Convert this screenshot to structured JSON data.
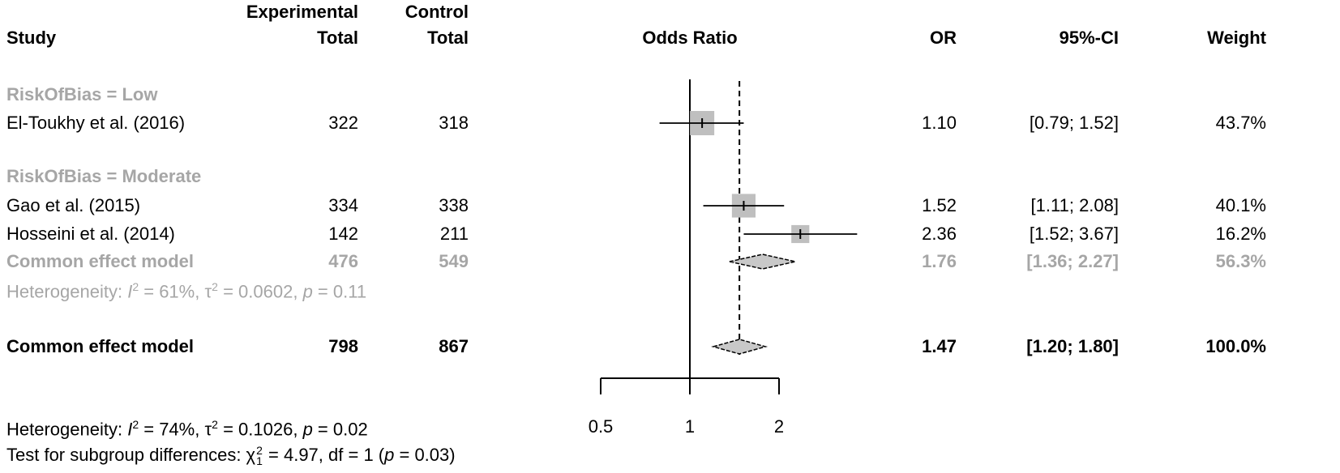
{
  "chart_data": {
    "type": "forest",
    "title": "Odds Ratio",
    "headers": {
      "study": "Study",
      "experimental": [
        "Experimental",
        "Total"
      ],
      "control": [
        "Control",
        "Total"
      ],
      "plot": "Odds Ratio",
      "or": "OR",
      "ci": "95%-CI",
      "weight": "Weight"
    },
    "x_scale": "log",
    "xlim": [
      0.5,
      2
    ],
    "x_ticks": [
      0.5,
      1,
      2
    ],
    "x_tick_labels": [
      "0.5",
      "1",
      "2"
    ],
    "null_line": 1,
    "pooled_line": 1.47,
    "subgroups": [
      {
        "label": "RiskOfBias = Low",
        "studies": [
          {
            "name": "El-Toukhy et al. (2016)",
            "exp_total": "322",
            "ctrl_total": "318",
            "or": 1.1,
            "lower": 0.79,
            "upper": 1.52,
            "or_text": "1.10",
            "ci_text": "[0.79; 1.52]",
            "weight": 43.7,
            "weight_text": "43.7%"
          }
        ]
      },
      {
        "label": "RiskOfBias = Moderate",
        "studies": [
          {
            "name": "Gao et al. (2015)",
            "exp_total": "334",
            "ctrl_total": "338",
            "or": 1.52,
            "lower": 1.11,
            "upper": 2.08,
            "or_text": "1.52",
            "ci_text": "[1.11; 2.08]",
            "weight": 40.1,
            "weight_text": "40.1%"
          },
          {
            "name": "Hosseini et al. (2014)",
            "exp_total": "142",
            "ctrl_total": "211",
            "or": 2.36,
            "lower": 1.52,
            "upper": 3.67,
            "or_text": "2.36",
            "ci_text": "[1.52; 3.67]",
            "weight": 16.2,
            "weight_text": "16.2%"
          }
        ],
        "summary": {
          "name": "Common effect model",
          "exp_total": "476",
          "ctrl_total": "549",
          "or": 1.76,
          "lower": 1.36,
          "upper": 2.27,
          "or_text": "1.76",
          "ci_text": "[1.36; 2.27]",
          "weight_text": "56.3%"
        },
        "heterogeneity": [
          {
            "t": "Heterogeneity: "
          },
          {
            "t": "I",
            "i": true
          },
          {
            "t": "2",
            "sup": true
          },
          {
            "t": " = 61%, "
          },
          {
            "t": "τ"
          },
          {
            "t": "2",
            "sup": true
          },
          {
            "t": " = 0.0602, "
          },
          {
            "t": "p",
            "i": true
          },
          {
            "t": " = 0.11"
          }
        ]
      }
    ],
    "overall": {
      "name": "Common effect model",
      "exp_total": "798",
      "ctrl_total": "867",
      "or": 1.47,
      "lower": 1.2,
      "upper": 1.8,
      "or_text": "1.47",
      "ci_text": "[1.20; 1.80]",
      "weight_text": "100.0%"
    },
    "footer": [
      [
        {
          "t": "Heterogeneity: "
        },
        {
          "t": "I",
          "i": true
        },
        {
          "t": "2",
          "sup": true
        },
        {
          "t": " = 74%, "
        },
        {
          "t": "τ"
        },
        {
          "t": "2",
          "sup": true
        },
        {
          "t": " = 0.1026, "
        },
        {
          "t": "p",
          "i": true
        },
        {
          "t": " = 0.02"
        }
      ],
      [
        {
          "t": "Test for subgroup differences: "
        },
        {
          "t": "χ"
        },
        {
          "sup": "2",
          "sub": "1"
        },
        {
          "t": " = 4.97, df = 1 ("
        },
        {
          "t": "p",
          "i": true
        },
        {
          "t": " = 0.03)"
        }
      ]
    ],
    "colors": {
      "text": "#000000",
      "subgroup": "#a6a6a6",
      "box": "#bfbfbf",
      "diamond": "#c8c8c8"
    }
  }
}
